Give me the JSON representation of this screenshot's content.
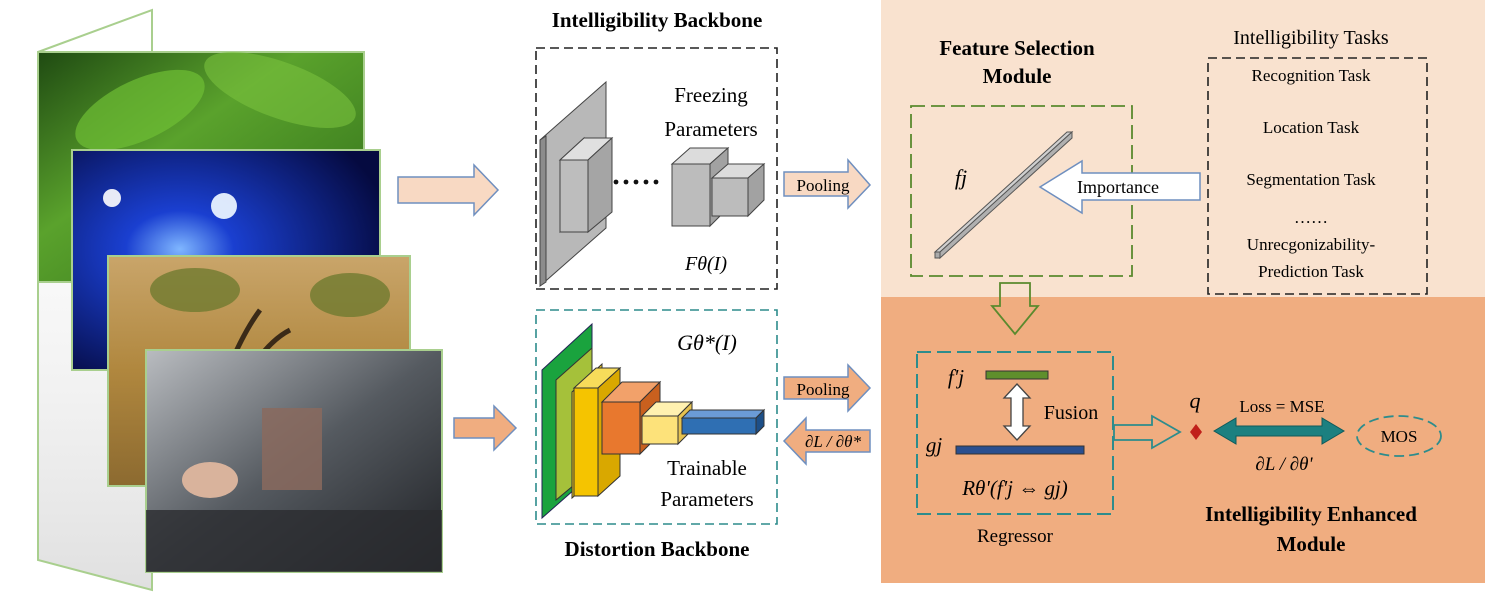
{
  "colors": {
    "light_panel": "#f9e2cf",
    "dark_panel": "#f0ad80",
    "dashed_green": "#5b8a2e",
    "dashed_teal": "#2d8c8c",
    "arrow_fill": "#f8d9c3",
    "arrow_stroke": "#6f8fbf",
    "loss_arrow": "#1c8080"
  },
  "icons": [
    "image-stack",
    "cnn-layers",
    "hollow-arrow",
    "double-arrow"
  ],
  "backbones": {
    "intelligibility_title": "Intelligibility Backbone",
    "freezing_line1": "Freezing",
    "freezing_line2": "Parameters",
    "f_theta_label": "Fθ(I)",
    "g_theta_label": "Gθ*(I)",
    "trainable_line1": "Trainable",
    "trainable_line2": "Parameters",
    "distortion_title": "Distortion Backbone"
  },
  "pooling_top": "Pooling",
  "pooling_bottom": "Pooling",
  "gradient_backbone": "∂L / ∂θ*",
  "feature_selection": {
    "title_line1": "Feature Selection",
    "title_line2": "Module",
    "fj": "fj",
    "importance": "Importance"
  },
  "tasks": {
    "title": "Intelligibility Tasks",
    "items": [
      "Recognition Task",
      "Location  Task",
      "Segmentation Task",
      "……",
      "Unrecgonizability-",
      "Prediction Task"
    ]
  },
  "regressor": {
    "fj_prime": "f'j",
    "gj": "gj",
    "fusion": "Fusion",
    "formula": "Rθ'(f'j ⇔ gj)",
    "label": "Regressor"
  },
  "output": {
    "q": "q",
    "loss": "Loss = MSE",
    "gradient": "∂L / ∂θ'",
    "mos": "MOS",
    "module_line1": "Intelligibility Enhanced",
    "module_line2": "Module"
  }
}
